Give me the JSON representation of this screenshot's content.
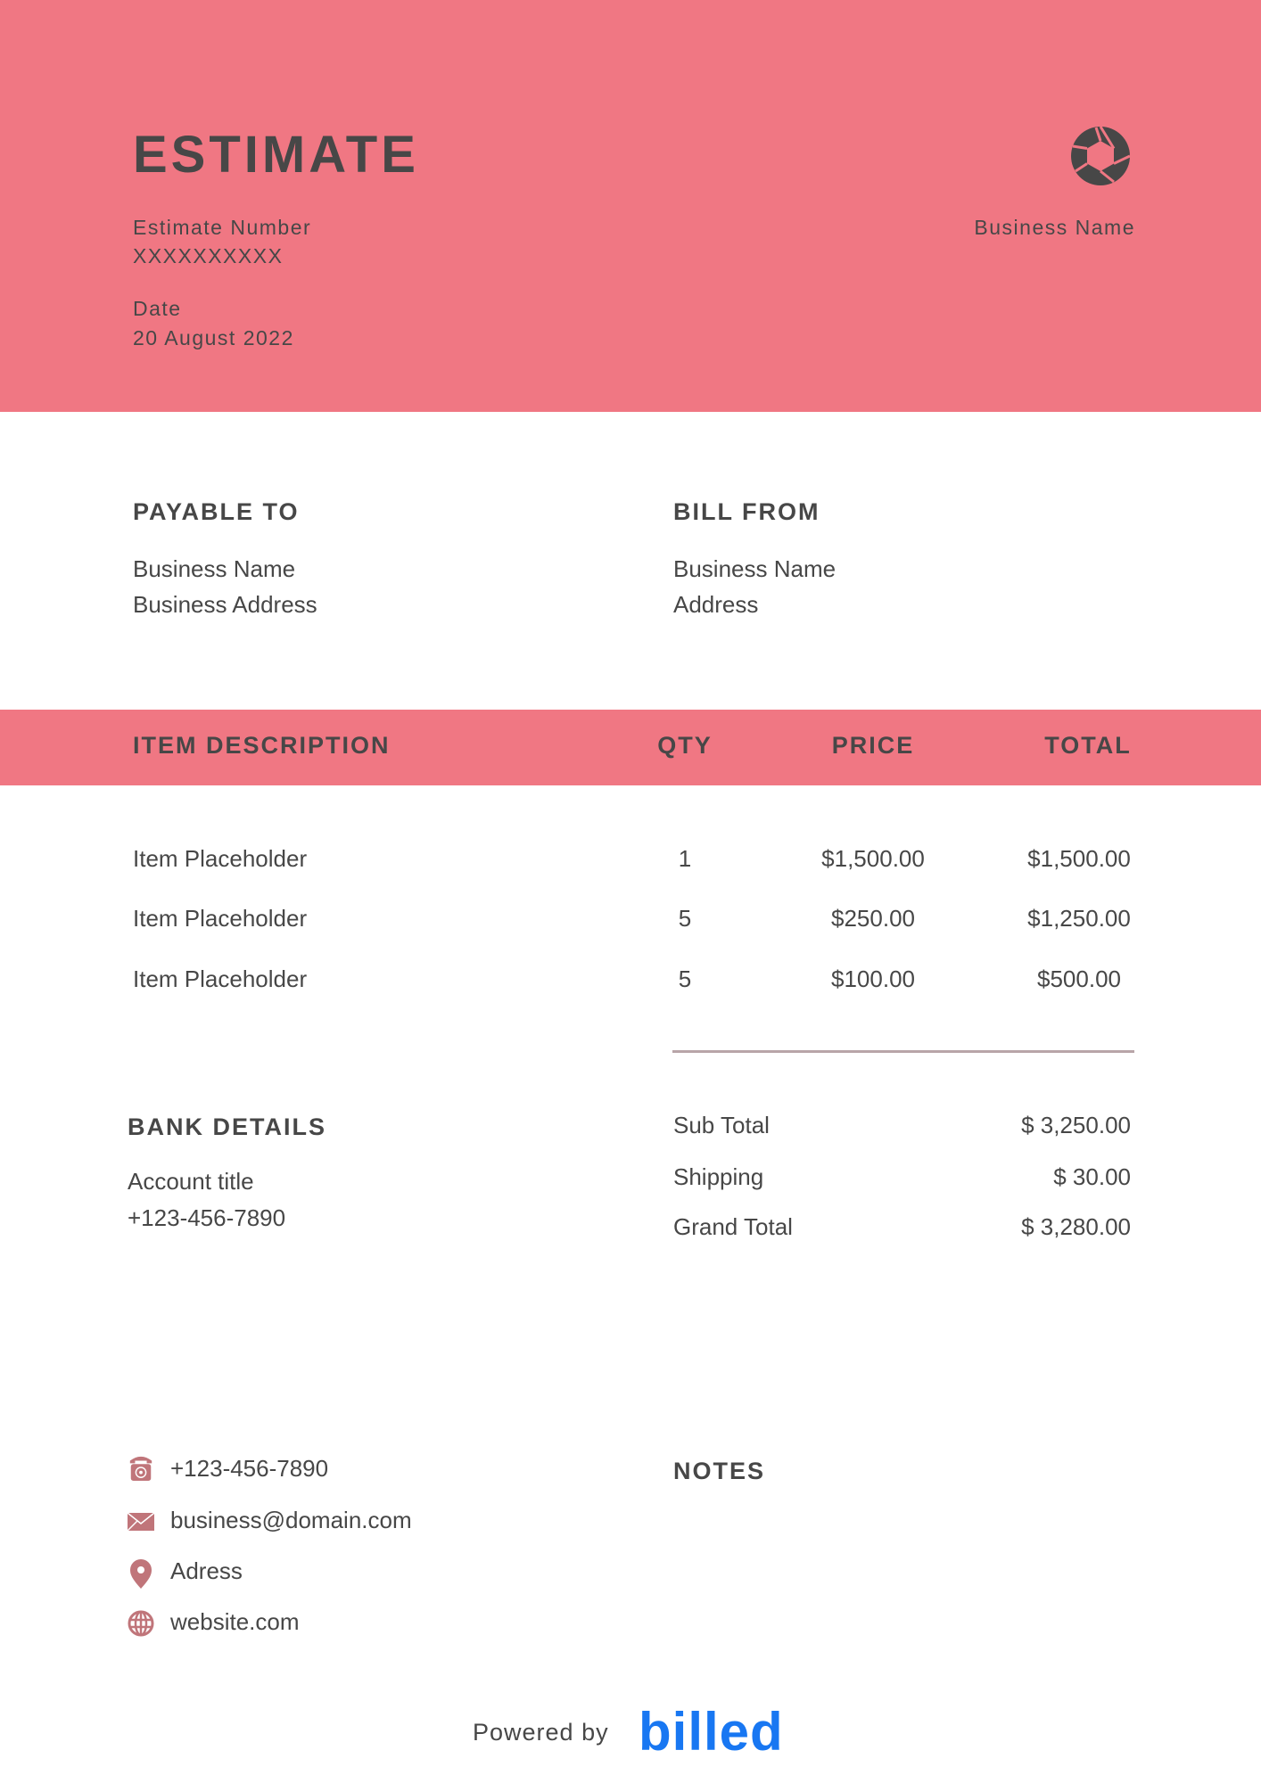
{
  "colors": {
    "accent": "#F07783",
    "text": "#474747",
    "icon": "#C0757A",
    "brand": "#1877F2"
  },
  "header": {
    "title": "ESTIMATE",
    "estimate_number_label": "Estimate Number",
    "estimate_number": "XXXXXXXXXX",
    "date_label": "Date",
    "date": "20 August 2022",
    "business_name": "Business Name",
    "logo_icon": "aperture-icon"
  },
  "payable_to": {
    "heading": "PAYABLE TO",
    "name": "Business Name",
    "address": "Business Address"
  },
  "bill_from": {
    "heading": "BILL FROM",
    "name": "Business Name",
    "address": "Address"
  },
  "table": {
    "headers": [
      "ITEM DESCRIPTION",
      "QTY",
      "PRICE",
      "TOTAL"
    ],
    "rows": [
      {
        "description": "Item Placeholder",
        "qty": "1",
        "price": "$1,500.00",
        "total": "$1,500.00"
      },
      {
        "description": "Item Placeholder",
        "qty": "5",
        "price": "$250.00",
        "total": "$1,250.00"
      },
      {
        "description": "Item Placeholder",
        "qty": "5",
        "price": "$100.00",
        "total": "$500.00"
      }
    ]
  },
  "bank": {
    "heading": "BANK DETAILS",
    "account_title": "Account title",
    "phone": "+123-456-7890"
  },
  "totals": {
    "subtotal_label": "Sub Total",
    "subtotal": "$ 3,250.00",
    "shipping_label": "Shipping",
    "shipping": "$ 30.00",
    "grand_total_label": "Grand Total",
    "grand_total": "$ 3,280.00"
  },
  "contact": {
    "phone": "+123-456-7890",
    "phone_icon": "telephone-icon",
    "email": "business@domain.com",
    "email_icon": "envelope-icon",
    "address": "Adress",
    "address_icon": "map-pin-icon",
    "website": "website.com",
    "website_icon": "globe-icon"
  },
  "notes": {
    "heading": "NOTES"
  },
  "footer": {
    "powered_by": "Powered by",
    "brand": "billed"
  }
}
